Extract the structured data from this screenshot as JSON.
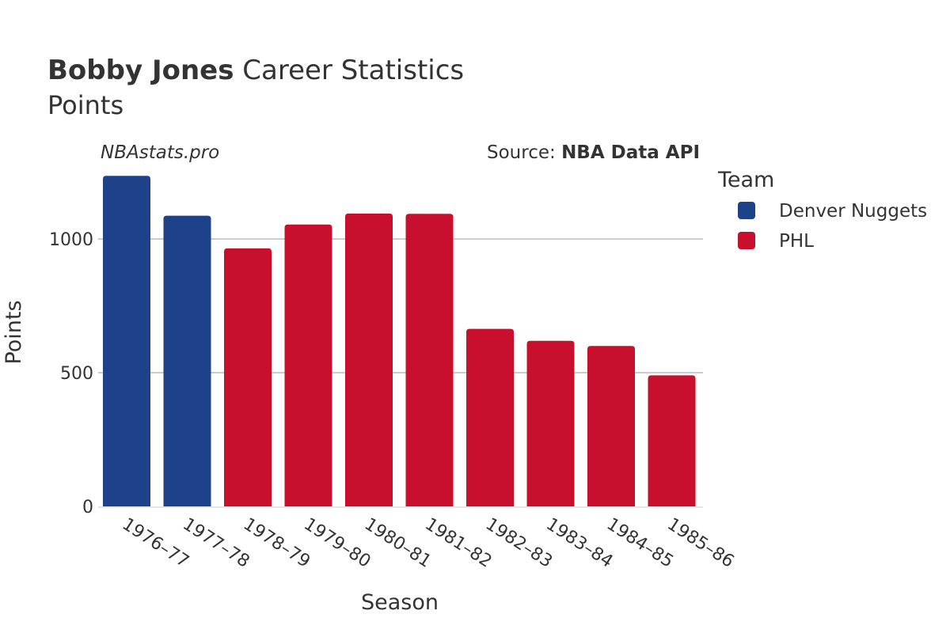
{
  "header": {
    "title_bold": "Bobby Jones",
    "title_rest": " Career Statistics",
    "subtitle": "Points",
    "watermark": "NBAstats.pro",
    "source_prefix": "Source: ",
    "source_bold": "NBA Data API"
  },
  "legend": {
    "title": "Team",
    "items": [
      {
        "label": "Denver Nuggets",
        "color": "#1d428a"
      },
      {
        "label": "PHL",
        "color": "#c8102e"
      }
    ]
  },
  "chart_data": {
    "type": "bar",
    "title": "Bobby Jones Career Statistics",
    "subtitle": "Points",
    "xlabel": "Season",
    "ylabel": "Points",
    "ylim": [
      0,
      1250
    ],
    "yticks": [
      0,
      500,
      1000
    ],
    "grid": true,
    "legend_position": "right",
    "categories": [
      "1976–77",
      "1977–78",
      "1978–79",
      "1979–80",
      "1980–81",
      "1981–82",
      "1982–83",
      "1983–84",
      "1984–85",
      "1985–86"
    ],
    "values": [
      1236,
      1087,
      965,
      1054,
      1095,
      1094,
      664,
      619,
      600,
      490
    ],
    "teams": [
      "Denver Nuggets",
      "Denver Nuggets",
      "PHL",
      "PHL",
      "PHL",
      "PHL",
      "PHL",
      "PHL",
      "PHL",
      "PHL"
    ],
    "series": [
      {
        "name": "Denver Nuggets",
        "color": "#1d428a"
      },
      {
        "name": "PHL",
        "color": "#c8102e"
      }
    ]
  }
}
